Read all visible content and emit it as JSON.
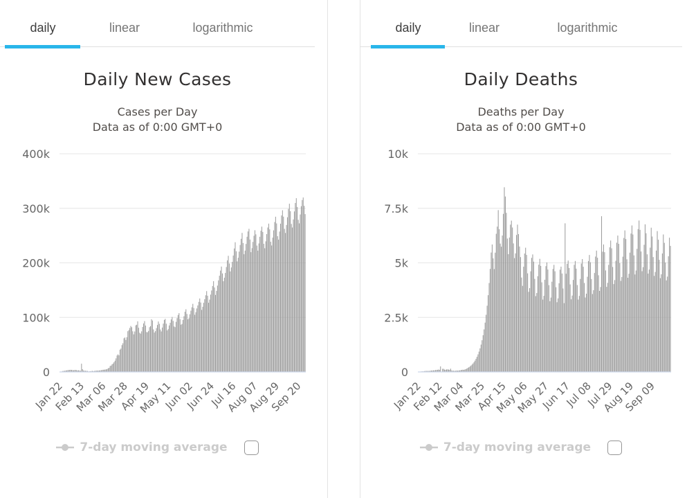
{
  "colors": {
    "accent": "#29b6ea",
    "bar": "#9d9d9d",
    "grid": "#e6e6e6",
    "axis_line": "#ccd6eb",
    "tab_active_text": "#3d3d3d",
    "tab_inactive_text": "#757575",
    "title_text": "#323030",
    "subtitle_text": "#514d4a",
    "axis_label_text": "#666666",
    "legend_disabled_text": "#cbcbcb",
    "divider": "#e3e3e3"
  },
  "panels": [
    {
      "tabs": [
        {
          "label": "daily",
          "active": true
        },
        {
          "label": "linear",
          "active": false
        },
        {
          "label": "logarithmic",
          "active": false
        }
      ],
      "title": "Daily New Cases",
      "subtitle_line1": "Cases per Day",
      "subtitle_line2": "Data as of 0:00 GMT+0",
      "legend_label": "7-day moving average",
      "legend_checkbox_checked": false
    },
    {
      "tabs": [
        {
          "label": "daily",
          "active": true
        },
        {
          "label": "linear",
          "active": false
        },
        {
          "label": "logarithmic",
          "active": false
        }
      ],
      "title": "Daily Deaths",
      "subtitle_line1": "Deaths per Day",
      "subtitle_line2": "Data as of 0:00 GMT+0",
      "legend_label": "7-day moving average",
      "legend_checkbox_checked": false
    }
  ],
  "chart_data": [
    {
      "type": "bar",
      "title": "Daily New Cases",
      "subtitle": "Cases per Day — Data as of 0:00 GMT+0",
      "ymin": 0,
      "ymax": 400000,
      "y_tick_labels": [
        "400k",
        "300k",
        "200k",
        "100k",
        "0"
      ],
      "x_tick_labels": [
        "Jan 22",
        "Feb 13",
        "Mar 06",
        "Mar 28",
        "Apr 19",
        "May 11",
        "Jun 02",
        "Jun 24",
        "Jul 16",
        "Aug 07",
        "Aug 29",
        "Sep 20"
      ],
      "x_tick_interval_days": 22,
      "grid": true,
      "legend_position": "bottom",
      "hidden_series": "7-day moving average",
      "values": [
        550,
        700,
        850,
        1750,
        1900,
        2100,
        2600,
        2800,
        3200,
        3400,
        3700,
        3900,
        3700,
        3300,
        3100,
        3500,
        3600,
        3300,
        2700,
        3000,
        2600,
        2100,
        15200,
        5100,
        2700,
        2200,
        2100,
        1900,
        1800,
        900,
        1100,
        1300,
        1600,
        1900,
        1400,
        1800,
        2100,
        2300,
        2400,
        2400,
        2600,
        2900,
        3200,
        3600,
        4000,
        4100,
        4400,
        4700,
        5300,
        6600,
        7600,
        10900,
        11600,
        13900,
        15400,
        18000,
        20600,
        24900,
        30200,
        32200,
        30400,
        40800,
        42800,
        49200,
        52600,
        61700,
        63200,
        58600,
        63700,
        74700,
        76800,
        80600,
        84300,
        82000,
        74500,
        68900,
        74200,
        85500,
        86500,
        92800,
        81000,
        71800,
        70200,
        74400,
        82500,
        88900,
        93200,
        85000,
        73100,
        72800,
        75200,
        82100,
        84000,
        96600,
        94300,
        78000,
        72200,
        74800,
        80300,
        86100,
        92500,
        88200,
        77900,
        74300,
        81400,
        88600,
        95400,
        97200,
        88400,
        76100,
        78500,
        85200,
        90100,
        96300,
        100800,
        93600,
        83400,
        82200,
        91900,
        98700,
        104500,
        107800,
        96900,
        86700,
        88100,
        95300,
        102200,
        110400,
        114900,
        106300,
        96500,
        98400,
        105700,
        112300,
        118600,
        124900,
        117200,
        104800,
        109600,
        116400,
        121900,
        128500,
        134700,
        127300,
        113800,
        119500,
        126800,
        133400,
        140600,
        148200,
        139700,
        126900,
        132600,
        141800,
        149300,
        157600,
        166400,
        154800,
        141200,
        148600,
        158300,
        167900,
        176400,
        185800,
        193200,
        180600,
        166300,
        172800,
        181500,
        192400,
        204600,
        212900,
        198700,
        184300,
        191600,
        201800,
        213500,
        226400,
        237800,
        221300,
        202700,
        209400,
        220600,
        232800,
        244100,
        254900,
        236400,
        215800,
        222500,
        234700,
        247900,
        257600,
        262400,
        242800,
        219600,
        226900,
        238400,
        249700,
        259800,
        252300,
        231700,
        222400,
        235600,
        247800,
        258900,
        266400,
        256700,
        234900,
        226800,
        239500,
        252700,
        264800,
        271900,
        261400,
        238700,
        231900,
        246300,
        259600,
        274800,
        284600,
        272300,
        248900,
        242600,
        257400,
        271800,
        286900,
        296400,
        284700,
        262300,
        254800,
        269400,
        283600,
        298900,
        308400,
        294700,
        271300,
        264800,
        279600,
        294300,
        309800,
        318600,
        302400,
        278900,
        272400,
        288700,
        303900,
        315200,
        319800,
        304600,
        289400
      ]
    },
    {
      "type": "bar",
      "title": "Daily Deaths",
      "subtitle": "Deaths per Day — Data as of 0:00 GMT+0",
      "ymin": 0,
      "ymax": 10000,
      "y_tick_labels": [
        "10k",
        "7.5k",
        "5k",
        "2.5k",
        "0"
      ],
      "x_tick_labels": [
        "Jan 22",
        "Feb 12",
        "Mar 04",
        "Mar 25",
        "Apr 15",
        "May 06",
        "May 27",
        "Jun 17",
        "Jul 08",
        "Jul 29",
        "Aug 19",
        "Sep 09"
      ],
      "x_tick_interval_days": 21,
      "grid": true,
      "legend_position": "bottom",
      "hidden_series": "7-day moving average",
      "values": [
        9,
        11,
        15,
        24,
        26,
        26,
        38,
        43,
        46,
        45,
        46,
        45,
        57,
        64,
        66,
        72,
        73,
        86,
        89,
        97,
        108,
        97,
        254,
        13,
        144,
        142,
        106,
        98,
        115,
        118,
        109,
        97,
        150,
        71,
        52,
        62,
        44,
        57,
        64,
        58,
        67,
        72,
        83,
        95,
        101,
        98,
        112,
        131,
        154,
        186,
        215,
        246,
        289,
        334,
        386,
        447,
        518,
        601,
        696,
        806,
        934,
        1082,
        1254,
        1453,
        1684,
        1951,
        2261,
        2620,
        3036,
        3518,
        4076,
        4723,
        5473,
        5842,
        5206,
        4716,
        5466,
        6334,
        6661,
        7417,
        6541,
        5884,
        5741,
        6253,
        7246,
        8465,
        8041,
        7294,
        6113,
        5398,
        6161,
        6751,
        6935,
        6620,
        5891,
        5217,
        5434,
        6278,
        6752,
        6318,
        5749,
        5264,
        4327,
        3947,
        4823,
        5429,
        5694,
        5363,
        4519,
        3671,
        3842,
        4614,
        5229,
        5386,
        5056,
        4266,
        3475,
        3617,
        4389,
        4917,
        5184,
        4862,
        4108,
        3316,
        3489,
        4226,
        4849,
        5021,
        4696,
        3978,
        3242,
        3409,
        4136,
        4721,
        4909,
        4613,
        3884,
        3196,
        3371,
        4064,
        4687,
        4826,
        4511,
        3827,
        3154,
        6812,
        4502,
        4953,
        5106,
        4764,
        4012,
        3329,
        3501,
        4218,
        4911,
        5087,
        4735,
        3982,
        3317,
        3486,
        4263,
        4968,
        5173,
        4821,
        4076,
        3412,
        3588,
        4362,
        5084,
        5361,
        5027,
        4259,
        3572,
        3749,
        4536,
        5289,
        5561,
        5234,
        4431,
        3716,
        3894,
        7138,
        5511,
        5843,
        5489,
        4653,
        3901,
        4083,
        4907,
        5712,
        6024,
        5667,
        4812,
        4027,
        4209,
        5096,
        5923,
        6251,
        5872,
        4986,
        4174,
        4352,
        5284,
        6139,
        6488,
        6091,
        5163,
        4317,
        4501,
        5468,
        6344,
        6714,
        6302,
        5342,
        4468,
        4649,
        5641,
        6547,
        6941,
        6513,
        5521,
        4617,
        4803,
        5828,
        6766,
        6358,
        5391,
        4509,
        4694,
        5697,
        6612,
        6208,
        5264,
        4403,
        4583,
        5562,
        6455,
        6061,
        5139,
        4298,
        4475,
        5430,
        6302,
        5917,
        5017,
        4196,
        4369,
        5301,
        6153,
        5776
      ]
    }
  ]
}
